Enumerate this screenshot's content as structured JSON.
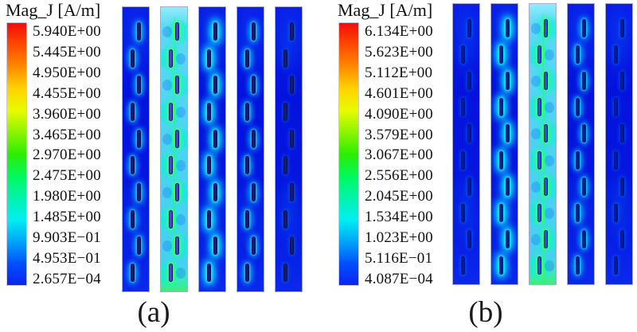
{
  "panels": [
    {
      "label": "(a)",
      "legend": {
        "title": "Mag_J [A/m]",
        "values": [
          "5.940E+00",
          "5.445E+00",
          "4.950E+00",
          "4.455E+00",
          "3.960E+00",
          "3.465E+00",
          "2.970E+00",
          "2.475E+00",
          "1.980E+00",
          "1.485E+00",
          "9.903E−01",
          "4.953E−01",
          "2.657E−04"
        ]
      },
      "strips": [
        "med",
        "hot",
        "bright",
        "med",
        "low"
      ],
      "slots_per_strip": 10
    },
    {
      "label": "(b)",
      "legend": {
        "title": "Mag_J [A/m]",
        "values": [
          "6.134E+00",
          "5.623E+00",
          "5.112E+00",
          "4.601E+00",
          "4.090E+00",
          "3.579E+00",
          "3.067E+00",
          "2.556E+00",
          "2.045E+00",
          "1.534E+00",
          "1.023E+00",
          "5.116E−01",
          "4.087E−04"
        ]
      },
      "strips": [
        "low",
        "bright",
        "hot",
        "med",
        "low"
      ],
      "slots_per_strip": 10
    }
  ],
  "colors": {
    "colormap": [
      "#f50c08",
      "#fe4a02",
      "#ff8a00",
      "#ffd301",
      "#e8fb02",
      "#8cf402",
      "#2ced04",
      "#01f95c",
      "#02f3ac",
      "#03eef2",
      "#01a5f8",
      "#0151fb",
      "#0b24f0"
    ],
    "strip_background": "#0412dd",
    "hot_strip_background": "#52d2f2",
    "slot_fill": "#0b1a8e",
    "glow_cyan": "#00d8ff",
    "spine_green": "#3cfa3c"
  },
  "chart_data": [
    {
      "type": "heatmap",
      "title": "Mag_J [A/m]",
      "panel_label": "(a)",
      "legend_scale_values": [
        5.94,
        5.445,
        4.95,
        4.455,
        3.96,
        3.465,
        2.97,
        2.475,
        1.98,
        1.485,
        0.9903,
        0.4953,
        0.0002657
      ],
      "scale_unit": "A/m",
      "colormap": "rainbow (red max → blue min)",
      "num_strips": 5,
      "slots_per_strip": 10,
      "hot_strip_index": 1,
      "notes": "Surface current magnitude on 5 slotted strips; 2nd strip shows maximum current"
    },
    {
      "type": "heatmap",
      "title": "Mag_J [A/m]",
      "panel_label": "(b)",
      "legend_scale_values": [
        6.134,
        5.623,
        5.112,
        4.601,
        4.09,
        3.579,
        3.067,
        2.556,
        2.045,
        1.534,
        1.023,
        0.5116,
        0.0004087
      ],
      "scale_unit": "A/m",
      "colormap": "rainbow (red max → blue min)",
      "num_strips": 5,
      "slots_per_strip": 10,
      "hot_strip_index": 2,
      "notes": "Surface current magnitude on 5 slotted strips; 3rd strip shows maximum current"
    }
  ]
}
